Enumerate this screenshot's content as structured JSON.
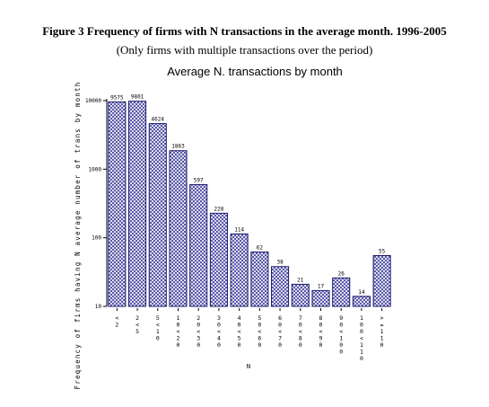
{
  "figure": {
    "title": "Figure 3 Frequency of firms with N transactions in the average month. 1996-2005",
    "subtitle": "(Only firms with multiple transactions over the period)"
  },
  "chart_data": {
    "type": "bar",
    "title": "Average N. transactions by month",
    "xlabel": "N",
    "ylabel": "Frequency of firms having N average number of trans by month",
    "yscale": "log",
    "ylim": [
      10,
      10000
    ],
    "yticks": [
      "10",
      "100",
      "1000",
      "10000"
    ],
    "categories": [
      "<2",
      "2<5",
      "5<10",
      "10<20",
      "20<30",
      "30<40",
      "40<50",
      "50<60",
      "60<70",
      "70<80",
      "80<90",
      "90<100",
      "100<110",
      ">=110"
    ],
    "values": [
      9575,
      9801,
      4624,
      1863,
      597,
      228,
      114,
      62,
      38,
      21,
      17,
      26,
      14,
      55
    ],
    "value_labels": [
      "9575",
      "9801",
      "4624",
      "1863",
      "597",
      "228",
      "114",
      "62",
      "38",
      "21",
      "17",
      "26",
      "14",
      "55"
    ],
    "bar_fill": "crosshatch",
    "colors": {
      "bar_stroke": "#1a1a6e",
      "hatch": "#3a3a9a",
      "axis": "#000000"
    }
  }
}
